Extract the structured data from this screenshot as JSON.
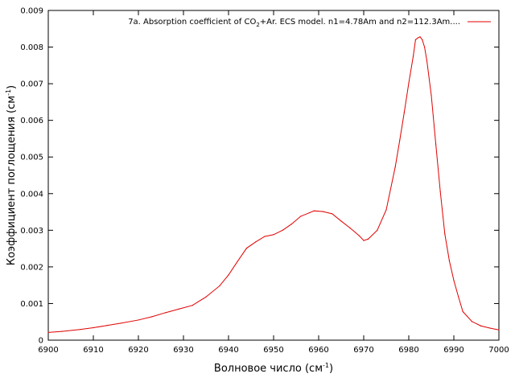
{
  "chart_data": {
    "type": "line",
    "title": "",
    "xlabel": {
      "main": "Волновое число (см",
      "sup": "-1",
      "tail": ")"
    },
    "ylabel": {
      "main": "Коэффициент поглощения (см",
      "sup": "-1",
      "tail": ")"
    },
    "xlim": [
      6900,
      7000
    ],
    "ylim": [
      0,
      0.009
    ],
    "x_ticks": [
      "6900",
      "6910",
      "6920",
      "6930",
      "6940",
      "6950",
      "6960",
      "6970",
      "6980",
      "6990",
      "7000"
    ],
    "y_ticks": [
      "0",
      "0.001",
      "0.002",
      "0.003",
      "0.004",
      "0.005",
      "0.006",
      "0.007",
      "0.008",
      "0.009"
    ],
    "grid": false,
    "legend_position": "top-right",
    "series": [
      {
        "name": {
          "pre": "7a. Absorption coefficient of CO",
          "sub": "2",
          "post": "+Ar. ECS model. n1=4.78Am and n2=112.3Am...."
        },
        "color": "#e00000",
        "x": [
          6900,
          6903,
          6907,
          6910,
          6913,
          6916,
          6920,
          6923,
          6926,
          6929,
          6932,
          6935,
          6938,
          6940,
          6942,
          6944,
          6946,
          6948,
          6950,
          6952,
          6954,
          6956,
          6958,
          6959,
          6961,
          6963,
          6965,
          6967,
          6969,
          6970,
          6971,
          6973,
          6975,
          6977,
          6978,
          6979,
          6980,
          6981,
          6981.5,
          6982,
          6982.5,
          6983,
          6983.5,
          6984,
          6985,
          6986,
          6987,
          6988,
          6989,
          6990,
          6991,
          6992,
          6994,
          6996,
          6998,
          7000
        ],
        "y": [
          0.00021,
          0.00024,
          0.00029,
          0.00034,
          0.0004,
          0.00046,
          0.00055,
          0.00064,
          0.00075,
          0.00085,
          0.00095,
          0.00118,
          0.00148,
          0.00178,
          0.00215,
          0.00251,
          0.00268,
          0.00283,
          0.00288,
          0.003,
          0.00317,
          0.00338,
          0.00348,
          0.00353,
          0.00351,
          0.00345,
          0.00325,
          0.00306,
          0.00285,
          0.00272,
          0.00276,
          0.003,
          0.00356,
          0.00473,
          0.00546,
          0.00622,
          0.00702,
          0.00776,
          0.0082,
          0.00825,
          0.00828,
          0.0082,
          0.008,
          0.00764,
          0.00668,
          0.00535,
          0.00405,
          0.0029,
          0.00217,
          0.00163,
          0.00119,
          0.00078,
          0.00051,
          0.00039,
          0.00033,
          0.00028
        ]
      }
    ]
  }
}
